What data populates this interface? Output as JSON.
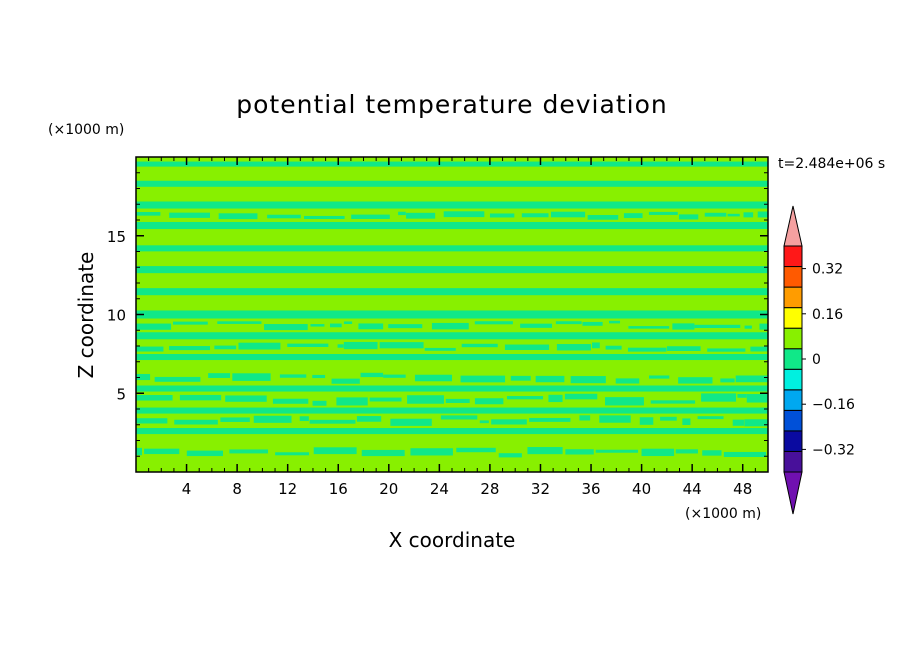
{
  "chart_data": {
    "type": "heatmap",
    "title": "potential temperature deviation",
    "xlabel": "X coordinate",
    "ylabel": "Z coordinate",
    "x_unit": "(×1000 m)",
    "y_unit": "(×1000 m)",
    "timestamp": "t=2.484e+06 s",
    "xlim": [
      0,
      50
    ],
    "ylim": [
      0,
      20
    ],
    "x_ticks": [
      4,
      8,
      12,
      16,
      20,
      24,
      28,
      32,
      36,
      40,
      44,
      48
    ],
    "y_ticks": [
      5,
      10,
      15
    ],
    "colorbar": {
      "levels": [
        -0.4,
        -0.32,
        -0.24,
        -0.16,
        -0.08,
        0,
        0.08,
        0.16,
        0.24,
        0.32,
        0.4
      ],
      "labels": [
        "0.32",
        "0.16",
        "0",
        "−0.16",
        "−0.32"
      ],
      "label_values": [
        0.32,
        0.16,
        0,
        -0.16,
        -0.32
      ],
      "colors_low_to_high": [
        "#7010b0",
        "#48109a",
        "#0a0aa0",
        "#0050d8",
        "#00a8f0",
        "#00f0e0",
        "#10e888",
        "#88f000",
        "#ffff00",
        "#ff9c00",
        "#ff5a00",
        "#ff1818",
        "#f5a0a0"
      ]
    },
    "field_colors": {
      "negative_band": "#10e888",
      "positive_band": "#88f000"
    },
    "bands": [
      {
        "z": [
          0.3,
          0.9
        ],
        "sign": "positive"
      },
      {
        "z": [
          0.9,
          1.6
        ],
        "sign": "mixed"
      },
      {
        "z": [
          1.6,
          2.3
        ],
        "sign": "positive"
      },
      {
        "z": [
          2.3,
          2.9
        ],
        "sign": "negative"
      },
      {
        "z": [
          2.9,
          3.6
        ],
        "sign": "mixed"
      },
      {
        "z": [
          3.6,
          4.2
        ],
        "sign": "negative"
      },
      {
        "z": [
          4.2,
          5.0
        ],
        "sign": "mixed"
      },
      {
        "z": [
          5.0,
          5.6
        ],
        "sign": "negative"
      },
      {
        "z": [
          5.6,
          6.3
        ],
        "sign": "mixed"
      },
      {
        "z": [
          6.3,
          7.0
        ],
        "sign": "positive"
      },
      {
        "z": [
          7.0,
          7.6
        ],
        "sign": "negative"
      },
      {
        "z": [
          7.6,
          8.3
        ],
        "sign": "mixed"
      },
      {
        "z": [
          8.3,
          9.0
        ],
        "sign": "negative"
      },
      {
        "z": [
          9.0,
          9.6
        ],
        "sign": "mixed"
      },
      {
        "z": [
          9.6,
          10.4
        ],
        "sign": "negative"
      },
      {
        "z": [
          10.4,
          11.1
        ],
        "sign": "positive"
      },
      {
        "z": [
          11.1,
          11.8
        ],
        "sign": "negative"
      },
      {
        "z": [
          11.8,
          12.5
        ],
        "sign": "positive"
      },
      {
        "z": [
          12.5,
          13.2
        ],
        "sign": "negative"
      },
      {
        "z": [
          13.2,
          13.9
        ],
        "sign": "positive"
      },
      {
        "z": [
          13.9,
          14.5
        ],
        "sign": "negative"
      },
      {
        "z": [
          14.5,
          15.3
        ],
        "sign": "positive"
      },
      {
        "z": [
          15.3,
          16.0
        ],
        "sign": "negative"
      },
      {
        "z": [
          16.0,
          16.6
        ],
        "sign": "mixed"
      },
      {
        "z": [
          16.6,
          17.3
        ],
        "sign": "negative"
      },
      {
        "z": [
          17.3,
          18.0
        ],
        "sign": "positive"
      },
      {
        "z": [
          18.0,
          18.6
        ],
        "sign": "negative"
      },
      {
        "z": [
          18.6,
          19.3
        ],
        "sign": "positive"
      },
      {
        "z": [
          19.3,
          19.8
        ],
        "sign": "negative"
      }
    ]
  }
}
